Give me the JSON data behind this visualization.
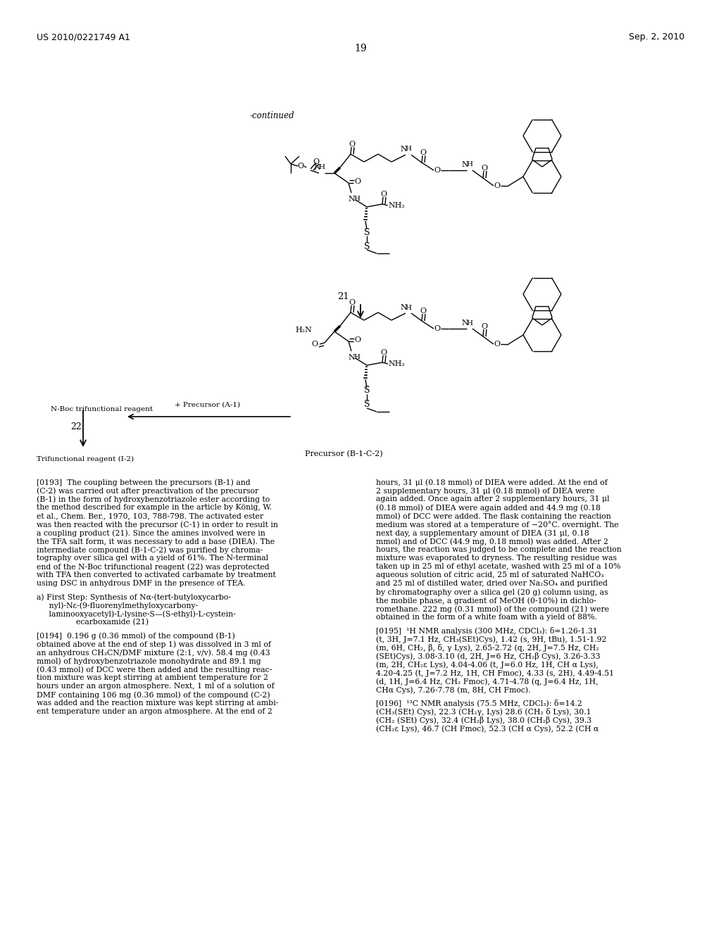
{
  "background_color": "#ffffff",
  "header_left": "US 2010/0221749 A1",
  "header_right": "Sep. 2, 2010",
  "page_number": "19",
  "continued_label": "-continued",
  "compound_21_label": "21",
  "compound_22_label": "22",
  "precursor_b1c2_label": "Precursor (B-1-C-2)",
  "n_boc_label": "N-Boc trifunctional reagent",
  "trifunctional_label": "Trifunctional reagent (I-2)",
  "plus_precursor_label": "+ Precursor (A-1)",
  "body_text_left": "[0193]  The coupling between the precursors (B-1) and\n(C-2) was carried out after preactivation of the precursor\n(B-1) in the form of hydroxybenzotriazole ester according to\nthe method described for example in the article by König, W.\net al., Chem. Ber., 1970, 103, 788-798. The activated ester\nwas then reacted with the precursor (C-1) in order to result in\na coupling product (21). Since the amines involved were in\nthe TFA salt form, it was necessary to add a base (DIEA). The\nintermediate compound (B-1-C-2) was purified by chroma-\ntography over silica gel with a yield of 61%. The N-terminal\nend of the N-Boc trifunctional reagent (22) was deprotected\nwith TFA then converted to activated carbamate by treatment\nusing DSC in anhydrous DMF in the presence of TEA.\n\na) First Step: Synthesis of Nα-(tert-butyloxycarbo-\n     nyl)-Nε-(9-fluorenylmethyloxycarbony-\n     laminooxyacetyl)-L-lysine-S—(S-ethyl)-L-cystein-\n                ecarboxamide (21)\n\n[0194]  0.196 g (0.36 mmol) of the compound (B-1)\nobtained above at the end of step 1) was dissolved in 3 ml of\nan anhydrous CH₃CN/DMF mixture (2:1, v/v). 58.4 mg (0.43\nmmol) of hydroxybenzotriazole monohydrate and 89.1 mg\n(0.43 mmol) of DCC were then added and the resulting reac-\ntion mixture was kept stirring at ambient temperature for 2\nhours under an argon atmosphere. Next, 1 ml of a solution of\nDMF containing 106 mg (0.36 mmol) of the compound (C-2)\nwas added and the reaction mixture was kept stirring at ambi-\nent temperature under an argon atmosphere. At the end of 2",
  "body_text_right": "hours, 31 μl (0.18 mmol) of DIEA were added. At the end of\n2 supplementary hours, 31 μl (0.18 mmol) of DIEA were\nagain added. Once again after 2 supplementary hours, 31 μl\n(0.18 mmol) of DIEA were again added and 44.9 mg (0.18\nmmol) of DCC were added. The flask containing the reaction\nmedium was stored at a temperature of −20°C. overnight. The\nnext day, a supplementary amount of DIEA (31 μl, 0.18\nmmol) and of DCC (44.9 mg, 0.18 mmol) was added. After 2\nhours, the reaction was judged to be complete and the reaction\nmixture was evaporated to dryness. The resulting residue was\ntaken up in 25 ml of ethyl acetate, washed with 25 ml of a 10%\naqueous solution of citric acid, 25 ml of saturated NaHCO₃\nand 25 ml of distilled water, dried over Na₂SO₄ and purified\nby chromatography over a silica gel (20 g) column using, as\nthe mobile phase, a gradient of MeOH (0-10%) in dichlo-\nromethane. 222 mg (0.31 mmol) of the compound (21) were\nobtained in the form of a white foam with a yield of 88%.\n\n[0195]  ¹H NMR analysis (300 MHz, CDCl₃): δ=1.26-1.31\n(t, 3H, J=7.1 Hz, CH₃(SEt)Cys), 1.42 (s, 9H, tBu), 1.51-1.92\n(m, 6H, CH₂, β, δ, γ Lys), 2.65-2.72 (q, 2H, J=7.5 Hz, CH₂\n(SEt)Cys), 3.08-3.10 (d, 2H, J=6 Hz, CH₂β Cys), 3.26-3.33\n(m, 2H, CH₂ε Lys), 4.04-4.06 (t, J=6.0 Hz, 1H, CH α Lys),\n4.20-4.25 (t, J=7.2 Hz, 1H, CH Fmoc), 4.33 (s, 2H), 4.49-4.51\n(d, 1H, J=6.4 Hz, CH₂ Fmoc), 4.71-4.78 (q, J=6.4 Hz, 1H,\nCHα Cys), 7.26-7.78 (m, 8H, CH Fmoc).\n\n[0196]  ¹³C NMR analysis (75.5 MHz, CDCl₃): δ=14.2\n(CH₃(SEt) Cys), 22.3 (CH₂γ, Lys) 28.6 (CH₂ δ Lys), 30.1\n(CH₂ (SEt) Cys), 32.4 (CH₂β Lys), 38.0 (CH₂β Cys), 39.3\n(CH₂ε Lys), 46.7 (CH Fmoc), 52.3 (CH α Cys), 52.2 (CH α"
}
